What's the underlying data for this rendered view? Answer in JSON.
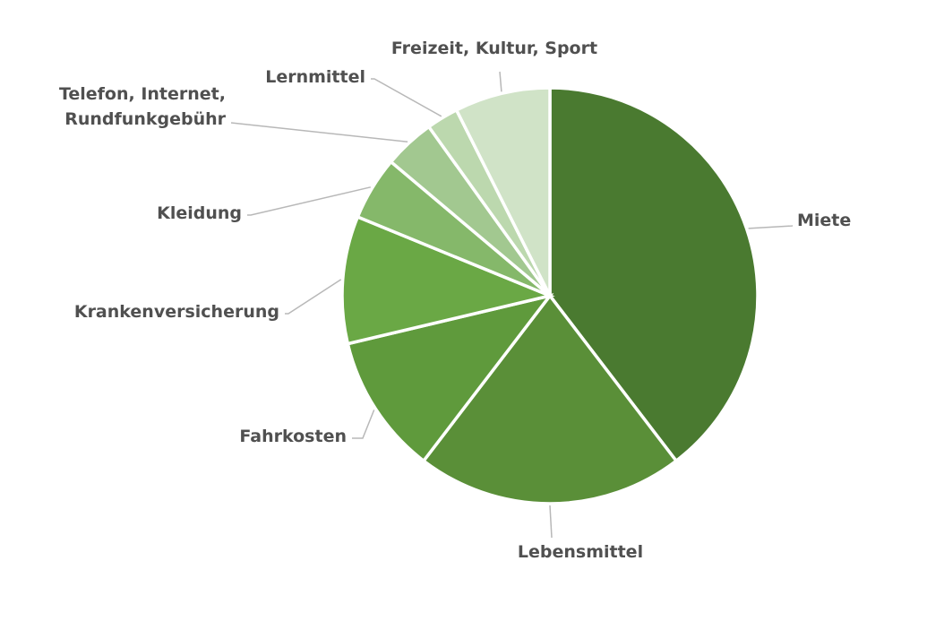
{
  "chart_data": {
    "type": "pie",
    "title": "",
    "start_angle_deg": 0,
    "direction": "clockwise",
    "legend": "none",
    "slices": [
      {
        "label": [
          "Miete"
        ],
        "value": 40,
        "color": "#4a7a30"
      },
      {
        "label": [
          "Lebensmittel"
        ],
        "value": 21,
        "color": "#5a8f38"
      },
      {
        "label": [
          "Fahrkosten"
        ],
        "value": 11,
        "color": "#5f9a3c"
      },
      {
        "label": [
          "Krankenversicherung"
        ],
        "value": 10,
        "color": "#6aa845"
      },
      {
        "label": [
          "Kleidung"
        ],
        "value": 5,
        "color": "#85b86a"
      },
      {
        "label": [
          "Telefon, Internet,",
          "Rundfunkgebühr"
        ],
        "value": 4,
        "color": "#a2c890"
      },
      {
        "label": [
          "Lernmittel"
        ],
        "value": 2.5,
        "color": "#bcd8ae"
      },
      {
        "label": [
          "Freizeit, Kultur, Sport"
        ],
        "value": 7.5,
        "color": "#d0e3c7"
      }
    ]
  }
}
